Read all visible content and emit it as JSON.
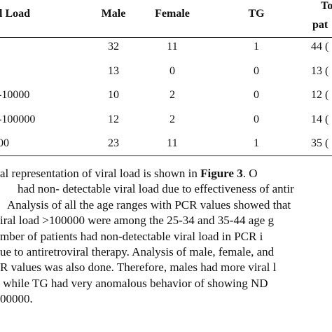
{
  "table": {
    "header": [
      "l Load",
      "Male",
      "Female",
      "TG",
      "To",
      "pat"
    ],
    "rows": [
      {
        "cells": [
          "32",
          "11",
          "1",
          "44 ("
        ]
      },
      {
        "cells": [
          "13",
          "0",
          "0",
          "13 ("
        ]
      },
      {
        "label": "-10000",
        "cells": [
          "10",
          "2",
          "0",
          "12 ("
        ]
      },
      {
        "label": "-100000",
        "cells": [
          "12",
          "2",
          "0",
          "14 ("
        ]
      },
      {
        "label": "00",
        "cells": [
          "23",
          "11",
          "1",
          "35 ("
        ]
      }
    ]
  },
  "paragraph": {
    "lines": [
      [
        "al representation of viral load is shown in ",
        "Figure 3",
        ". O"
      ],
      "had non- detectable viral load due to effectiveness of antir",
      "Analysis of all the age ranges with PCR values showed that",
      "iral load >100000 were among the 25-34 and 35-44 age g",
      "mber of patients had non-detectable viral load in PCR i",
      "ue to antiretroviral therapy. Analysis of male, female, and",
      "R values was also done. Therefore, males had more viral l",
      " while TG had very anomalous behavior of showing ND",
      "00000."
    ]
  }
}
